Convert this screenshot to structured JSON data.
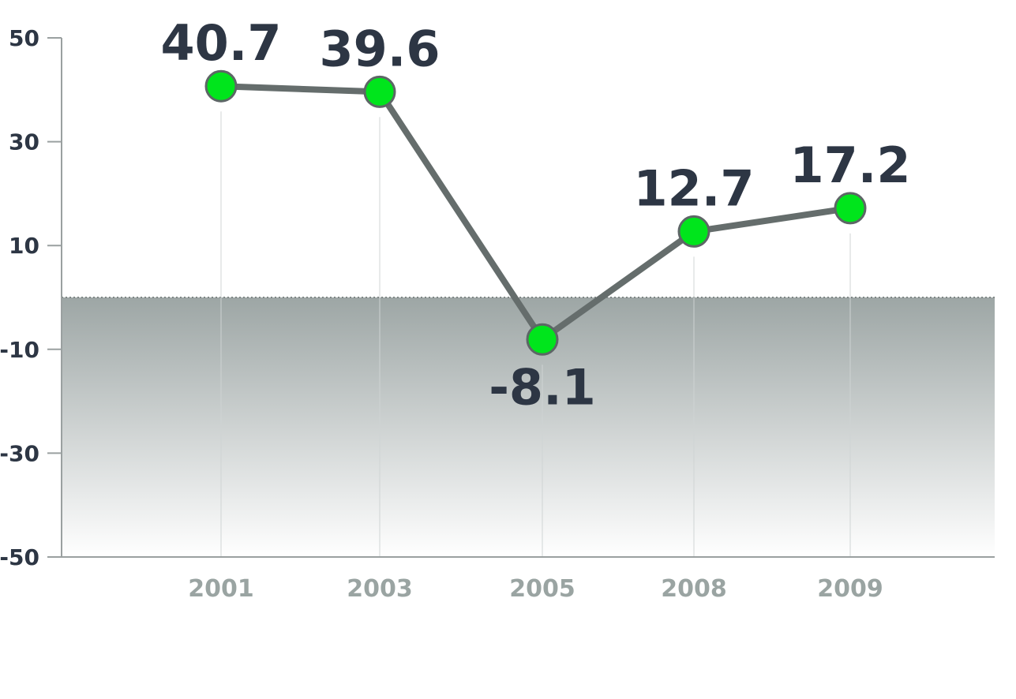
{
  "chart_data": {
    "type": "line",
    "categories": [
      "2001",
      "2003",
      "2005",
      "2008",
      "2009"
    ],
    "series": [
      {
        "values": [
          40.7,
          39.6,
          -8.1,
          12.7,
          17.2
        ]
      }
    ],
    "value_labels": [
      "40.7",
      "39.6",
      "-8.1",
      "12.7",
      "17.2"
    ],
    "yticks": [
      50,
      30,
      10,
      -10,
      -30,
      -50
    ],
    "ytick_labels": [
      "50",
      "30",
      "10",
      "-10",
      "-30",
      "-50"
    ],
    "ylim": [
      -50,
      50
    ],
    "shaded_region": [
      -50,
      0
    ],
    "title": "",
    "xlabel": "",
    "ylabel": "",
    "grid": "vertical",
    "colors": {
      "line": "#656d6c",
      "marker_fill": "#00e51c",
      "marker_stroke": "#5d6666",
      "shade_top": "#9da6a5",
      "shade_bottom": "#ffffff",
      "label": "#2d3644",
      "category_label": "#9aa4a2",
      "axis": "#9aa0a0"
    }
  }
}
